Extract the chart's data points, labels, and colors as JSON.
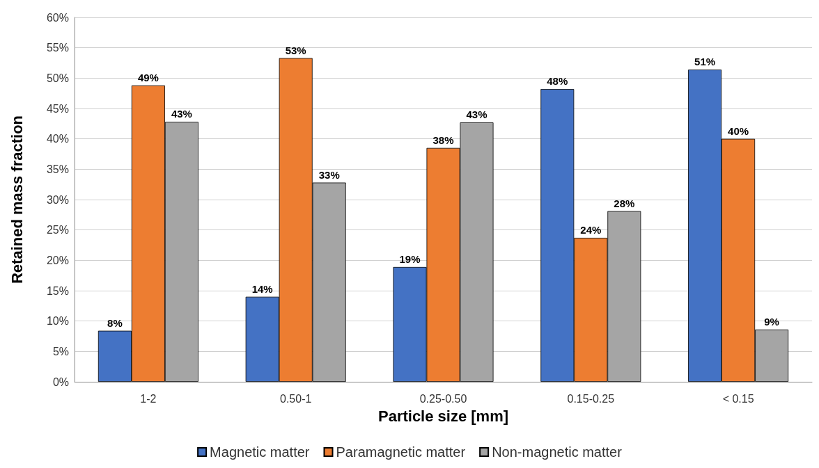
{
  "chart_data": {
    "type": "bar",
    "xlabel": "Particle size [mm]",
    "ylabel": "Retained mass fraction",
    "categories": [
      "1-2",
      "0.50-1",
      "0.25-0.50",
      "0.15-0.25",
      "< 0.15"
    ],
    "series": [
      {
        "name": "Magnetic matter",
        "color": "#4472c4",
        "values": [
          8.4,
          14,
          18.9,
          48.2,
          51.4
        ],
        "value_labels": [
          "8%",
          "14%",
          "19%",
          "48%",
          "51%"
        ]
      },
      {
        "name": "Paramagnetic matter",
        "color": "#ed7d31",
        "values": [
          48.8,
          53.3,
          38.5,
          23.7,
          40
        ],
        "value_labels": [
          "49%",
          "53%",
          "38%",
          "24%",
          "40%"
        ]
      },
      {
        "name": "Non-magnetic matter",
        "color": "#a5a5a5",
        "values": [
          42.8,
          32.8,
          42.7,
          28.1,
          8.6
        ],
        "value_labels": [
          "43%",
          "33%",
          "43%",
          "28%",
          "9%"
        ]
      }
    ],
    "ylim": [
      0,
      60
    ],
    "yticks": [
      {
        "value": 0,
        "label": "0%"
      },
      {
        "value": 5,
        "label": "5%"
      },
      {
        "value": 10,
        "label": "10%"
      },
      {
        "value": 15,
        "label": "15%"
      },
      {
        "value": 20,
        "label": "20%"
      },
      {
        "value": 25,
        "label": "25%"
      },
      {
        "value": 30,
        "label": "30%"
      },
      {
        "value": 35,
        "label": "35%"
      },
      {
        "value": 40,
        "label": "40%"
      },
      {
        "value": 45,
        "label": "45%"
      },
      {
        "value": 50,
        "label": "50%"
      },
      {
        "value": 55,
        "label": "55%"
      },
      {
        "value": 60,
        "label": "60%"
      }
    ],
    "grid": "y",
    "legend": "bottom"
  }
}
